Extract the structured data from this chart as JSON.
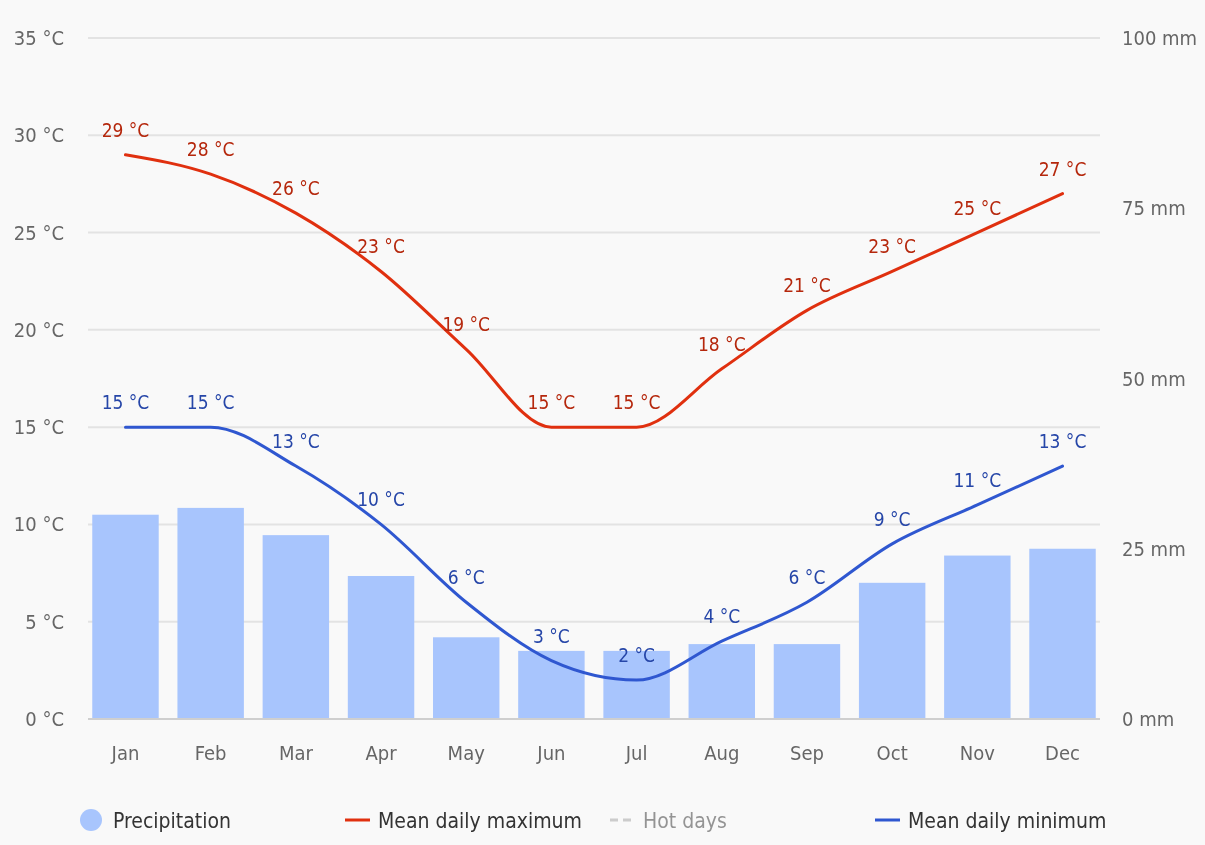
{
  "chart_data": {
    "type": "bar",
    "categories": [
      "Jan",
      "Feb",
      "Mar",
      "Apr",
      "May",
      "Jun",
      "Jul",
      "Aug",
      "Sep",
      "Oct",
      "Nov",
      "Dec"
    ],
    "series": [
      {
        "name": "Precipitation",
        "axis": "y2",
        "color": "#a8c5fd",
        "values": [
          30,
          31,
          27,
          21,
          12,
          10,
          10,
          11,
          11,
          20,
          24,
          25
        ]
      },
      {
        "name": "Mean daily maximum",
        "type": "line",
        "color": "#e0300f",
        "values": [
          29,
          28,
          26,
          23,
          19,
          15,
          15,
          18,
          21,
          23,
          25,
          27
        ],
        "value_labels": [
          "29 °C",
          "28 °C",
          "26 °C",
          "23 °C",
          "19 °C",
          "15 °C",
          "15 °C",
          "18 °C",
          "21 °C",
          "23 °C",
          "25 °C",
          "27 °C"
        ]
      },
      {
        "name": "Hot days",
        "type": "line",
        "color": "#cccccc",
        "line_style": "dashed",
        "values": [
          null,
          null,
          null,
          null,
          null,
          null,
          null,
          null,
          null,
          null,
          null,
          null
        ]
      },
      {
        "name": "Mean daily minimum",
        "type": "line",
        "color": "#2f57d0",
        "values": [
          15,
          15,
          13,
          10,
          6,
          3,
          2,
          4,
          6,
          9,
          11,
          13
        ],
        "value_labels": [
          "15 °C",
          "15 °C",
          "13 °C",
          "10 °C",
          "6 °C",
          "3 °C",
          "2 °C",
          "4 °C",
          "6 °C",
          "9 °C",
          "11 °C",
          "13 °C"
        ]
      }
    ],
    "ylim": [
      0,
      35
    ],
    "yticks": [
      {
        "value": 0,
        "label": "0 °C"
      },
      {
        "value": 5,
        "label": "5 °C"
      },
      {
        "value": 10,
        "label": "10 °C"
      },
      {
        "value": 15,
        "label": "15 °C"
      },
      {
        "value": 20,
        "label": "20 °C"
      },
      {
        "value": 25,
        "label": "25 °C"
      },
      {
        "value": 30,
        "label": "30 °C"
      },
      {
        "value": 35,
        "label": "35 °C"
      }
    ],
    "y2lim": [
      0,
      100
    ],
    "y2ticks": [
      {
        "value": 0,
        "label": "0 mm"
      },
      {
        "value": 25,
        "label": "25 mm"
      },
      {
        "value": 50,
        "label": "50 mm"
      },
      {
        "value": 75,
        "label": "75 mm"
      },
      {
        "value": 100,
        "label": "100 mm"
      }
    ],
    "grid": "y",
    "legend": "bottom",
    "marker": "none"
  }
}
